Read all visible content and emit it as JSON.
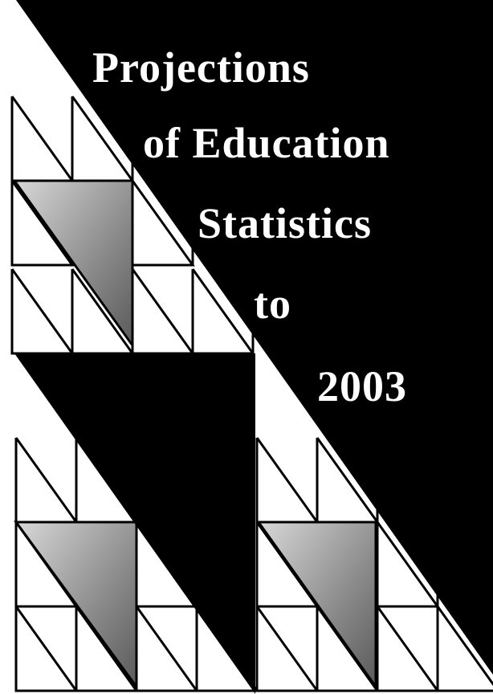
{
  "cover": {
    "title_lines": [
      "Projections",
      "of Education",
      "Statistics",
      "to",
      "2003"
    ]
  }
}
